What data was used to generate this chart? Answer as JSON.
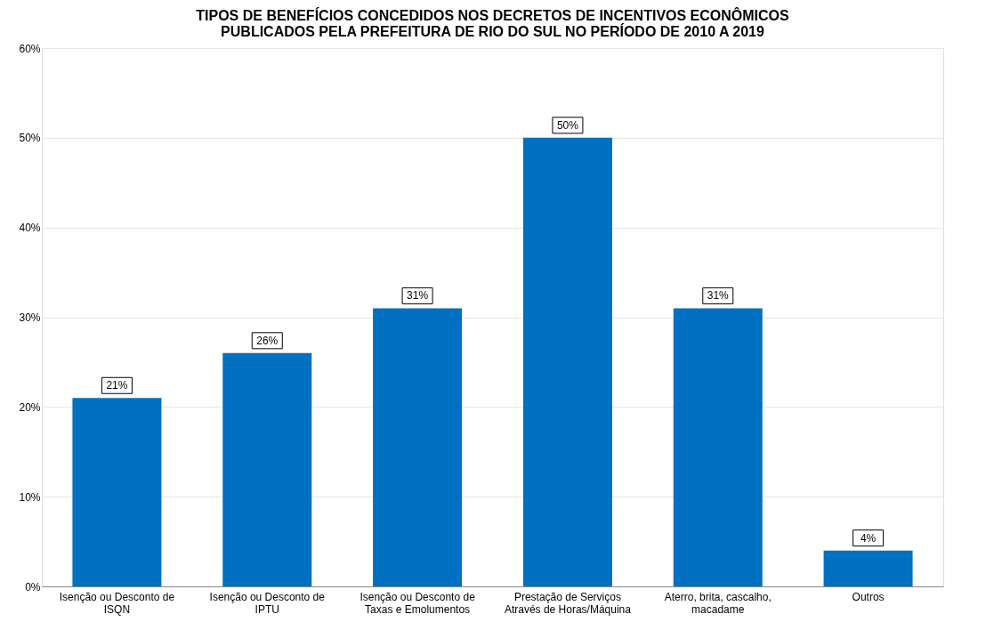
{
  "chart_data": {
    "type": "bar",
    "title": "TIPOS DE BENEFÍCIOS CONCEDIDOS NOS DECRETOS DE INCENTIVOS ECONÔMICOS\nPUBLICADOS PELA PREFEITURA DE RIO DO SUL NO PERÍODO DE 2010 A 2019",
    "categories": [
      "Isenção ou Desconto de\nISQN",
      "Isenção ou Desconto de\nIPTU",
      "Isenção ou Desconto de\nTaxas e Emolumentos",
      "Prestação de Serviços\nAtravés de Horas/Máquina",
      "Aterro, brita, cascalho,\nmacadame",
      "Outros"
    ],
    "values": [
      21,
      26,
      31,
      50,
      31,
      4
    ],
    "color": "#0070c0",
    "data_labels": true,
    "value_labels": [
      "21%",
      "26%",
      "31%",
      "50%",
      "31%",
      "4%"
    ],
    "ylim": [
      0,
      60
    ],
    "yticks": [
      {
        "value": 0,
        "label": "0%"
      },
      {
        "value": 10,
        "label": "10%"
      },
      {
        "value": 20,
        "label": "20%"
      },
      {
        "value": 30,
        "label": "30%"
      },
      {
        "value": 40,
        "label": "40%"
      },
      {
        "value": 50,
        "label": "50%"
      },
      {
        "value": 60,
        "label": "60%"
      }
    ],
    "grid": "y"
  }
}
